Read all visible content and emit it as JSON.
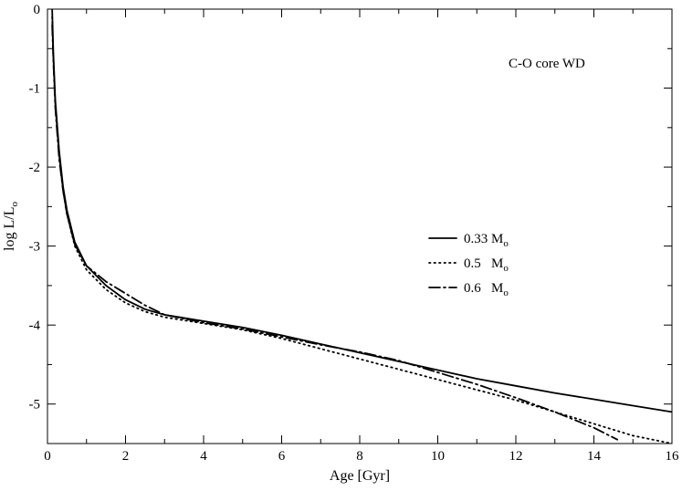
{
  "chart_data": {
    "type": "line",
    "title": "",
    "annotation": "C-O core WD",
    "xlabel": "Age [Gyr]",
    "ylabel_main": "log L/L",
    "ylabel_sub": "o",
    "xlim": [
      0,
      16
    ],
    "ylim": [
      -5.5,
      0
    ],
    "xticks": [
      0,
      2,
      4,
      6,
      8,
      10,
      12,
      14,
      16
    ],
    "xtick_labels": [
      "0",
      "2",
      "4",
      "6",
      "8",
      "10",
      "12",
      "14",
      "16"
    ],
    "yticks": [
      0,
      -1,
      -2,
      -3,
      -4,
      -5
    ],
    "ytick_labels": [
      "0",
      "-1",
      "-2",
      "-3",
      "-4",
      "-5"
    ],
    "grid": false,
    "legend_position": "center-right",
    "series": [
      {
        "name": "0.33 M",
        "name_sub": "o",
        "style": "solid",
        "color": "#000000",
        "x": [
          0.12,
          0.15,
          0.2,
          0.3,
          0.4,
          0.5,
          0.7,
          1.0,
          1.5,
          2.0,
          2.5,
          3.0,
          4.0,
          5.0,
          6.0,
          7.0,
          8.0,
          9.0,
          10.0,
          11.0,
          12.0,
          13.0,
          14.0,
          15.0,
          16.0
        ],
        "y": [
          0.0,
          -0.55,
          -1.15,
          -1.8,
          -2.25,
          -2.55,
          -2.95,
          -3.25,
          -3.5,
          -3.68,
          -3.8,
          -3.87,
          -3.95,
          -4.03,
          -4.13,
          -4.24,
          -4.35,
          -4.46,
          -4.57,
          -4.68,
          -4.77,
          -4.86,
          -4.94,
          -5.02,
          -5.1
        ]
      },
      {
        "name": "0.5   M",
        "name_sub": "o",
        "style": "dotted",
        "color": "#000000",
        "x": [
          0.12,
          0.15,
          0.2,
          0.3,
          0.4,
          0.5,
          0.7,
          1.0,
          1.5,
          2.0,
          2.5,
          3.0,
          4.0,
          5.0,
          6.0,
          7.0,
          8.0,
          9.0,
          10.0,
          11.0,
          12.0,
          13.0,
          14.0,
          15.0,
          16.0
        ],
        "y": [
          -0.1,
          -0.6,
          -1.2,
          -1.85,
          -2.3,
          -2.6,
          -3.0,
          -3.3,
          -3.55,
          -3.72,
          -3.83,
          -3.9,
          -3.98,
          -4.06,
          -4.17,
          -4.3,
          -4.43,
          -4.56,
          -4.69,
          -4.82,
          -4.95,
          -5.1,
          -5.25,
          -5.4,
          -5.5
        ]
      },
      {
        "name": "0.6   M",
        "name_sub": "o",
        "style": "dashdot",
        "color": "#000000",
        "x": [
          0.12,
          0.15,
          0.2,
          0.3,
          0.4,
          0.5,
          0.7,
          1.0,
          1.5,
          2.0,
          2.5,
          3.0,
          4.0,
          5.0,
          6.0,
          7.0,
          8.0,
          9.0,
          10.0,
          11.0,
          12.0,
          13.0,
          14.0,
          14.6
        ],
        "y": [
          -0.2,
          -0.65,
          -1.25,
          -1.9,
          -2.3,
          -2.6,
          -2.98,
          -3.25,
          -3.45,
          -3.6,
          -3.75,
          -3.87,
          -3.97,
          -4.05,
          -4.15,
          -4.25,
          -4.34,
          -4.45,
          -4.6,
          -4.75,
          -4.92,
          -5.1,
          -5.3,
          -5.45
        ]
      }
    ]
  }
}
